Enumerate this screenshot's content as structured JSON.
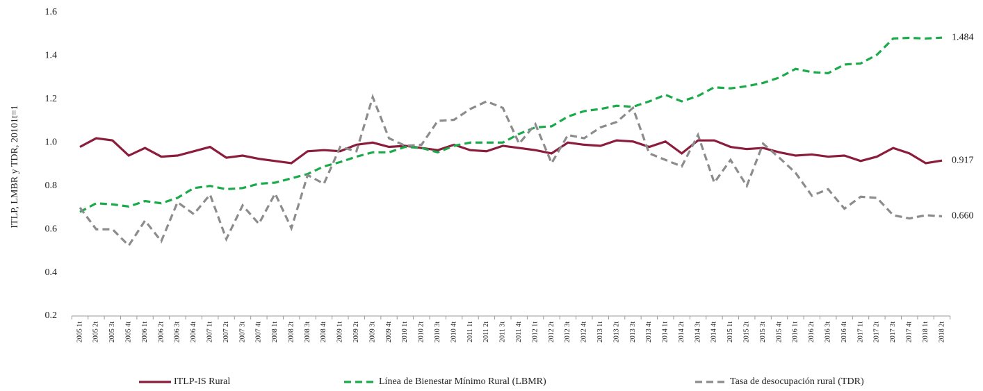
{
  "chart_data": {
    "type": "line",
    "ylabel": "ITLP, LMBR y TDR, 20101t=1",
    "categories": [
      "2005 1t",
      "2005 2t",
      "2005 3t",
      "2005 4t",
      "2006 1t",
      "2006 2t",
      "2006 3t",
      "2006 4t",
      "2007 1t",
      "2007 2t",
      "2007 3t",
      "2007 4t",
      "2008 1t",
      "2008 2t",
      "2008 3t",
      "2008 4t",
      "2009 1t",
      "2009 2t",
      "2009 3t",
      "2009 4t",
      "2010 1t",
      "2010 2t",
      "2010 3t",
      "2010 4t",
      "2011 1t",
      "2011 2t",
      "2011 3t",
      "2011 4t",
      "2012 1t",
      "2012 2t",
      "2012 3t",
      "2012 4t",
      "2013 1t",
      "2013 2t",
      "2013 3t",
      "2013 4t",
      "2014 1t",
      "2014 2t",
      "2014 3t",
      "2014 4t",
      "2015 1t",
      "2015 2t",
      "2015 3t",
      "2015 4t",
      "2016 1t",
      "2016 2t",
      "2016 3t",
      "2016 4t",
      "2017 1t",
      "2017 2t",
      "2017 3t",
      "2017 4t",
      "2018 1t",
      "2018 2t"
    ],
    "series": [
      {
        "name": "ITLP-IS Rural",
        "color": "#8c1c3c",
        "dashed": false,
        "values": [
          0.98,
          1.02,
          1.01,
          0.94,
          0.975,
          0.935,
          0.94,
          0.96,
          0.98,
          0.93,
          0.94,
          0.925,
          0.915,
          0.905,
          0.96,
          0.965,
          0.96,
          0.99,
          1.0,
          0.98,
          0.985,
          0.975,
          0.965,
          0.99,
          0.965,
          0.96,
          0.985,
          0.975,
          0.965,
          0.95,
          1.0,
          0.99,
          0.985,
          1.01,
          1.005,
          0.98,
          1.005,
          0.95,
          1.01,
          1.01,
          0.98,
          0.97,
          0.975,
          0.955,
          0.94,
          0.945,
          0.935,
          0.94,
          0.915,
          0.935,
          0.975,
          0.95,
          0.905,
          0.917
        ],
        "value_labels": [
          null,
          null,
          null,
          null,
          null,
          null,
          null,
          null,
          null,
          null,
          null,
          null,
          null,
          null,
          null,
          null,
          null,
          null,
          null,
          null,
          null,
          null,
          null,
          null,
          null,
          null,
          null,
          null,
          null,
          null,
          null,
          null,
          null,
          null,
          null,
          null,
          null,
          null,
          null,
          null,
          null,
          null,
          null,
          null,
          null,
          null,
          null,
          null,
          null,
          null,
          null,
          null,
          null,
          "0.917"
        ]
      },
      {
        "name": "Línea de Bienestar Mínimo Rural (LBMR)",
        "color": "#1aaa4a",
        "dashed": true,
        "values": [
          0.68,
          0.72,
          0.715,
          0.705,
          0.73,
          0.72,
          0.745,
          0.79,
          0.8,
          0.785,
          0.79,
          0.81,
          0.815,
          0.835,
          0.855,
          0.89,
          0.91,
          0.935,
          0.955,
          0.955,
          0.98,
          0.975,
          0.955,
          0.985,
          1.0,
          1.0,
          1.0,
          1.04,
          1.07,
          1.075,
          1.12,
          1.145,
          1.155,
          1.17,
          1.165,
          1.19,
          1.22,
          1.19,
          1.215,
          1.255,
          1.25,
          1.26,
          1.275,
          1.3,
          1.34,
          1.325,
          1.32,
          1.36,
          1.365,
          1.405,
          1.48,
          1.483,
          1.48,
          1.484
        ],
        "value_labels": [
          null,
          null,
          null,
          null,
          null,
          null,
          null,
          null,
          null,
          null,
          null,
          null,
          null,
          null,
          null,
          null,
          null,
          null,
          null,
          null,
          null,
          null,
          null,
          null,
          null,
          null,
          null,
          null,
          null,
          null,
          null,
          null,
          null,
          null,
          null,
          null,
          null,
          null,
          null,
          null,
          null,
          null,
          null,
          null,
          null,
          null,
          null,
          null,
          null,
          null,
          null,
          null,
          null,
          "1.484"
        ]
      },
      {
        "name": "Tasa de desocupación rural (TDR)",
        "color": "#8c8c8c",
        "dashed": true,
        "values": [
          0.7,
          0.6,
          0.6,
          0.525,
          0.64,
          0.545,
          0.725,
          0.67,
          0.76,
          0.555,
          0.71,
          0.625,
          0.765,
          0.605,
          0.85,
          0.81,
          0.98,
          0.96,
          1.21,
          1.02,
          0.985,
          0.99,
          1.1,
          1.105,
          1.155,
          1.19,
          1.16,
          0.995,
          1.085,
          0.905,
          1.035,
          1.02,
          1.07,
          1.095,
          1.16,
          0.95,
          0.92,
          0.89,
          1.035,
          0.815,
          0.92,
          0.8,
          0.995,
          0.93,
          0.86,
          0.755,
          0.785,
          0.695,
          0.75,
          0.745,
          0.665,
          0.65,
          0.665,
          0.66
        ],
        "value_labels": [
          null,
          null,
          null,
          null,
          null,
          null,
          null,
          null,
          null,
          null,
          null,
          null,
          null,
          null,
          null,
          null,
          null,
          null,
          null,
          null,
          null,
          null,
          null,
          null,
          null,
          null,
          null,
          null,
          null,
          null,
          null,
          null,
          null,
          null,
          null,
          null,
          null,
          null,
          null,
          null,
          null,
          null,
          null,
          null,
          null,
          null,
          null,
          null,
          null,
          null,
          null,
          null,
          null,
          "0.660"
        ]
      }
    ],
    "ylim": [
      0.2,
      1.6
    ],
    "yticks": [
      0.2,
      0.4,
      0.6,
      0.8,
      {
        "value": 1,
        "label": "1.0"
      },
      1.2,
      1.4,
      1.6
    ],
    "grid": false
  }
}
